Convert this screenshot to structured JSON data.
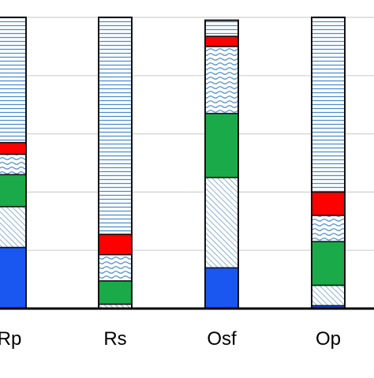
{
  "chart_data": {
    "type": "bar",
    "stacked": true,
    "normalized": true,
    "categories": [
      "Rp",
      "Rs",
      "Osf",
      "Op"
    ],
    "ylim": [
      0,
      1
    ],
    "grid": true,
    "series": [
      {
        "pattern": "solid",
        "color": "#1a56f0",
        "values": [
          0.21,
          0.0,
          0.14,
          0.01
        ]
      },
      {
        "pattern": "diagonal-hatch",
        "color": "#5b8ec7",
        "values": [
          0.14,
          0.015,
          0.31,
          0.07
        ]
      },
      {
        "pattern": "solid",
        "color": "#1aaa4a",
        "values": [
          0.11,
          0.08,
          0.22,
          0.15
        ]
      },
      {
        "pattern": "wavy",
        "color": "#4f8fd0",
        "values": [
          0.07,
          0.09,
          0.23,
          0.09
        ]
      },
      {
        "pattern": "solid",
        "color": "#ff0000",
        "values": [
          0.04,
          0.07,
          0.035,
          0.08
        ]
      },
      {
        "pattern": "horizontal-lines",
        "color": "#4f8fd0",
        "values": [
          0.43,
          0.745,
          0.055,
          0.6
        ]
      }
    ]
  }
}
